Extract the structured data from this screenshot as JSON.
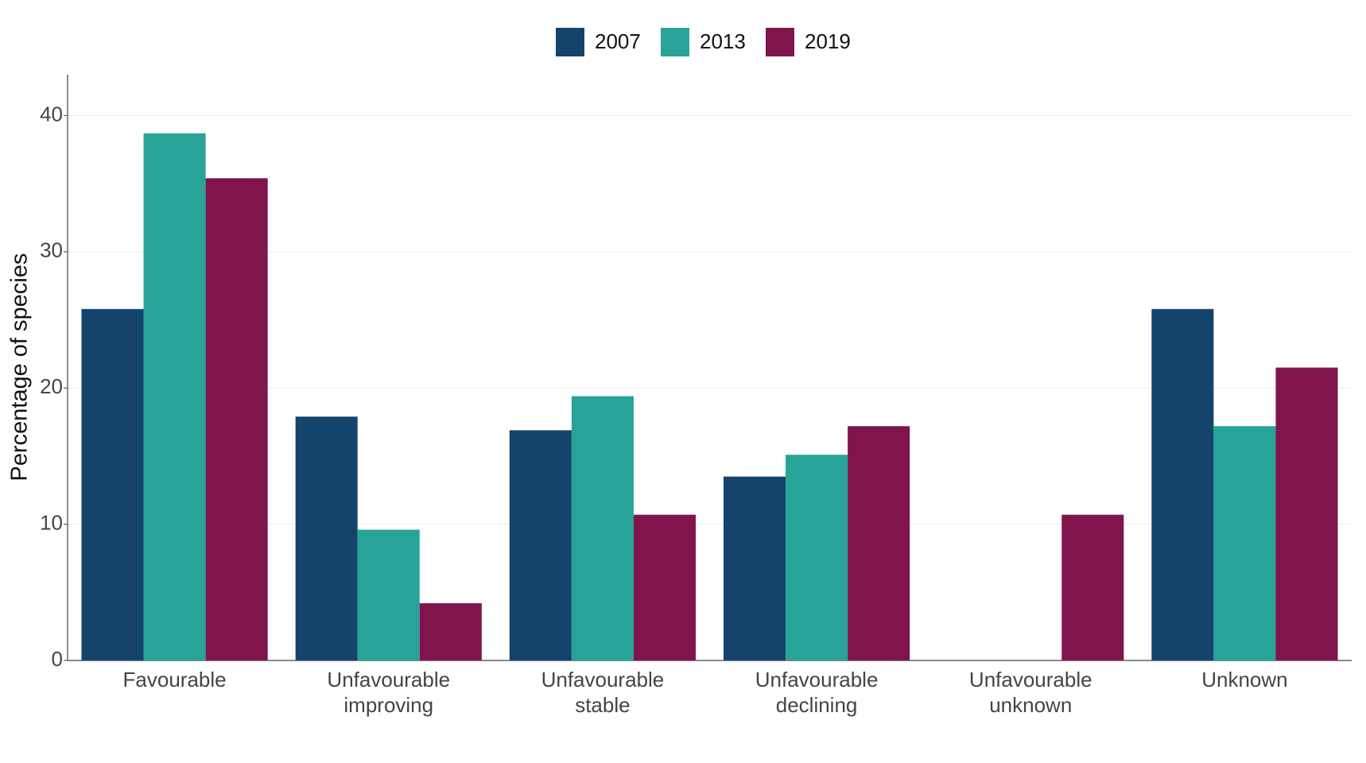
{
  "chart_data": {
    "type": "bar",
    "y_label": "Percentage of species",
    "categories": [
      "Favourable",
      "Unfavourable improving",
      "Unfavourable stable",
      "Unfavourable declining",
      "Unfavourable unknown",
      "Unknown"
    ],
    "series": [
      {
        "name": "2007",
        "color": "#14446c",
        "values": [
          25.8,
          17.9,
          16.9,
          13.5,
          0,
          25.8
        ]
      },
      {
        "name": "2013",
        "color": "#28a397",
        "values": [
          38.7,
          9.6,
          19.4,
          15.1,
          0,
          17.2
        ]
      },
      {
        "name": "2019",
        "color": "#7f154c",
        "values": [
          35.4,
          4.2,
          10.7,
          17.2,
          10.7,
          21.5
        ]
      }
    ],
    "ylim": [
      0,
      43
    ],
    "yticks": [
      0,
      10,
      20,
      30,
      40
    ],
    "grid": true
  }
}
